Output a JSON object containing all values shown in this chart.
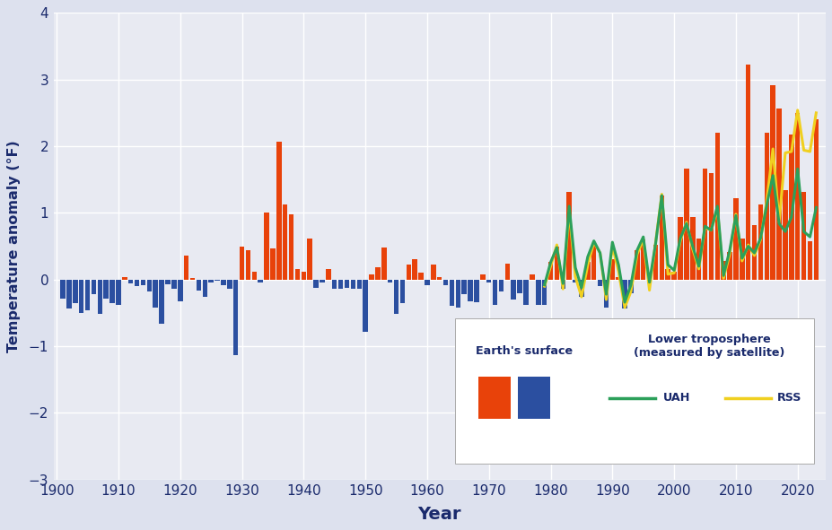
{
  "surface_years": [
    1901,
    1902,
    1903,
    1904,
    1905,
    1906,
    1907,
    1908,
    1909,
    1910,
    1911,
    1912,
    1913,
    1914,
    1915,
    1916,
    1917,
    1918,
    1919,
    1920,
    1921,
    1922,
    1923,
    1924,
    1925,
    1926,
    1927,
    1928,
    1929,
    1930,
    1931,
    1932,
    1933,
    1934,
    1935,
    1936,
    1937,
    1938,
    1939,
    1940,
    1941,
    1942,
    1943,
    1944,
    1945,
    1946,
    1947,
    1948,
    1949,
    1950,
    1951,
    1952,
    1953,
    1954,
    1955,
    1956,
    1957,
    1958,
    1959,
    1960,
    1961,
    1962,
    1963,
    1964,
    1965,
    1966,
    1967,
    1968,
    1969,
    1970,
    1971,
    1972,
    1973,
    1974,
    1975,
    1976,
    1977,
    1978,
    1979,
    1980,
    1981,
    1982,
    1983,
    1984,
    1985,
    1986,
    1987,
    1988,
    1989,
    1990,
    1991,
    1992,
    1993,
    1994,
    1995,
    1996,
    1997,
    1998,
    1999,
    2000,
    2001,
    2002,
    2003,
    2004,
    2005,
    2006,
    2007,
    2008,
    2009,
    2010,
    2011,
    2012,
    2013,
    2014,
    2015,
    2016,
    2017,
    2018,
    2019,
    2020,
    2021,
    2022,
    2023
  ],
  "surface_values": [
    -0.28,
    -0.44,
    -0.36,
    -0.5,
    -0.46,
    -0.22,
    -0.52,
    -0.28,
    -0.36,
    -0.38,
    0.04,
    -0.06,
    -0.1,
    -0.08,
    -0.18,
    -0.42,
    -0.66,
    -0.07,
    -0.14,
    -0.32,
    0.36,
    0.02,
    -0.16,
    -0.26,
    -0.04,
    -0.02,
    -0.08,
    -0.14,
    -1.14,
    0.5,
    0.44,
    0.12,
    -0.05,
    1.0,
    0.47,
    2.07,
    1.12,
    0.98,
    0.16,
    0.12,
    0.62,
    -0.12,
    -0.04,
    0.16,
    -0.14,
    -0.14,
    -0.12,
    -0.14,
    -0.14,
    -0.78,
    0.08,
    0.18,
    0.48,
    -0.04,
    -0.52,
    -0.36,
    0.22,
    0.3,
    0.1,
    -0.08,
    0.22,
    0.04,
    -0.08,
    -0.4,
    -0.42,
    -0.22,
    -0.32,
    -0.34,
    0.08,
    -0.04,
    -0.38,
    -0.18,
    0.24,
    -0.3,
    -0.2,
    -0.38,
    0.08,
    -0.38,
    -0.38,
    0.26,
    0.5,
    -0.14,
    1.32,
    -0.04,
    -0.26,
    0.26,
    0.54,
    -0.1,
    -0.42,
    0.3,
    0.04,
    -0.44,
    -0.2,
    0.44,
    0.6,
    -0.06,
    0.52,
    1.26,
    0.16,
    0.12,
    0.94,
    1.66,
    0.94,
    0.62,
    1.66,
    1.6,
    2.2,
    0.28,
    0.42,
    1.22,
    0.62,
    3.22,
    0.82,
    1.12,
    2.2,
    2.92,
    2.56,
    1.34,
    2.18,
    2.5,
    1.32,
    0.58,
    2.4
  ],
  "uah_years": [
    1979,
    1980,
    1981,
    1982,
    1983,
    1984,
    1985,
    1986,
    1987,
    1988,
    1989,
    1990,
    1991,
    1992,
    1993,
    1994,
    1995,
    1996,
    1997,
    1998,
    1999,
    2000,
    2001,
    2002,
    2003,
    2004,
    2005,
    2006,
    2007,
    2008,
    2009,
    2010,
    2011,
    2012,
    2013,
    2014,
    2015,
    2016,
    2017,
    2018,
    2019,
    2020,
    2021,
    2022,
    2023
  ],
  "uah_values": [
    -0.08,
    0.26,
    0.48,
    -0.06,
    1.1,
    0.18,
    -0.12,
    0.34,
    0.58,
    0.4,
    -0.22,
    0.56,
    0.22,
    -0.34,
    -0.08,
    0.44,
    0.64,
    -0.04,
    0.54,
    1.26,
    0.22,
    0.14,
    0.62,
    0.84,
    0.5,
    0.2,
    0.8,
    0.74,
    1.1,
    0.06,
    0.44,
    0.96,
    0.32,
    0.5,
    0.4,
    0.62,
    1.12,
    1.56,
    0.84,
    0.72,
    0.94,
    1.66,
    0.72,
    0.64,
    1.08
  ],
  "rss_years": [
    1979,
    1980,
    1981,
    1982,
    1983,
    1984,
    1985,
    1986,
    1987,
    1988,
    1989,
    1990,
    1991,
    1992,
    1993,
    1994,
    1995,
    1996,
    1997,
    1998,
    1999,
    2000,
    2001,
    2002,
    2003,
    2004,
    2005,
    2006,
    2007,
    2008,
    2009,
    2010,
    2011,
    2012,
    2013,
    2014,
    2015,
    2016,
    2017,
    2018,
    2019,
    2020,
    2021,
    2022,
    2023
  ],
  "rss_values": [
    -0.1,
    0.2,
    0.52,
    -0.14,
    1.04,
    0.04,
    -0.26,
    0.22,
    0.56,
    0.4,
    -0.3,
    0.5,
    0.12,
    -0.42,
    -0.18,
    0.38,
    0.6,
    -0.16,
    0.56,
    1.28,
    0.08,
    0.1,
    0.58,
    0.86,
    0.46,
    0.16,
    0.78,
    0.74,
    1.06,
    0.02,
    0.38,
    0.98,
    0.28,
    0.52,
    0.36,
    0.6,
    1.18,
    1.96,
    0.86,
    1.9,
    1.92,
    2.54,
    1.94,
    1.92,
    2.5
  ],
  "pos_color": "#e8420a",
  "neg_color": "#2b4fa0",
  "uah_color": "#2ca05a",
  "rss_color": "#f0d020",
  "bg_color": "#e8eaf2",
  "fig_bg_color": "#dde1ee",
  "text_color": "#1a2a6c",
  "ylim": [
    -3.0,
    4.0
  ],
  "xlim": [
    1899.5,
    2024.5
  ],
  "ylabel": "Temperature anomaly (°F)",
  "xlabel": "Year",
  "yticks": [
    -3,
    -2,
    -1,
    0,
    1,
    2,
    3,
    4
  ],
  "xticks": [
    1900,
    1910,
    1920,
    1930,
    1940,
    1950,
    1960,
    1970,
    1980,
    1990,
    2000,
    2010,
    2020
  ]
}
